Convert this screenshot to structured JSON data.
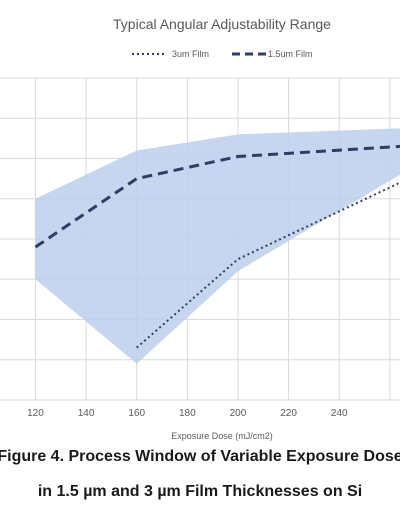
{
  "chart_data": {
    "type": "line",
    "title": "Typical Angular Adjustability Range",
    "xlabel": "Exposure Dose (mJ/cm2)",
    "ylabel": "",
    "xlim": [
      106,
      264
    ],
    "ylim": [
      0,
      8
    ],
    "x_ticks": [
      120,
      140,
      160,
      180,
      200,
      220,
      240
    ],
    "grid": true,
    "legend_position": "top-center",
    "series": [
      {
        "name": "3um Film",
        "style": "dotted",
        "color": "#2f3d66",
        "x": [
          160,
          200,
          264
        ],
        "y": [
          1.3,
          3.5,
          5.4
        ]
      },
      {
        "name": "1.5um Film",
        "style": "dashed",
        "color": "#2f3d66",
        "x": [
          120,
          160,
          200,
          264
        ],
        "y": [
          3.8,
          5.5,
          6.05,
          6.3
        ]
      }
    ],
    "band": {
      "color": "#bccfeb",
      "upper": {
        "x": [
          120,
          160,
          200,
          264
        ],
        "y": [
          5.0,
          6.2,
          6.6,
          6.75
        ]
      },
      "lower": {
        "x": [
          264,
          200,
          160,
          120
        ],
        "y": [
          5.6,
          3.2,
          0.9,
          3.0
        ]
      }
    }
  },
  "caption": {
    "line1": "Figure 4. Process Window of Variable Exposure Dose",
    "line2": "in 1.5 µm and 3 µm Film Thicknesses on Si"
  }
}
